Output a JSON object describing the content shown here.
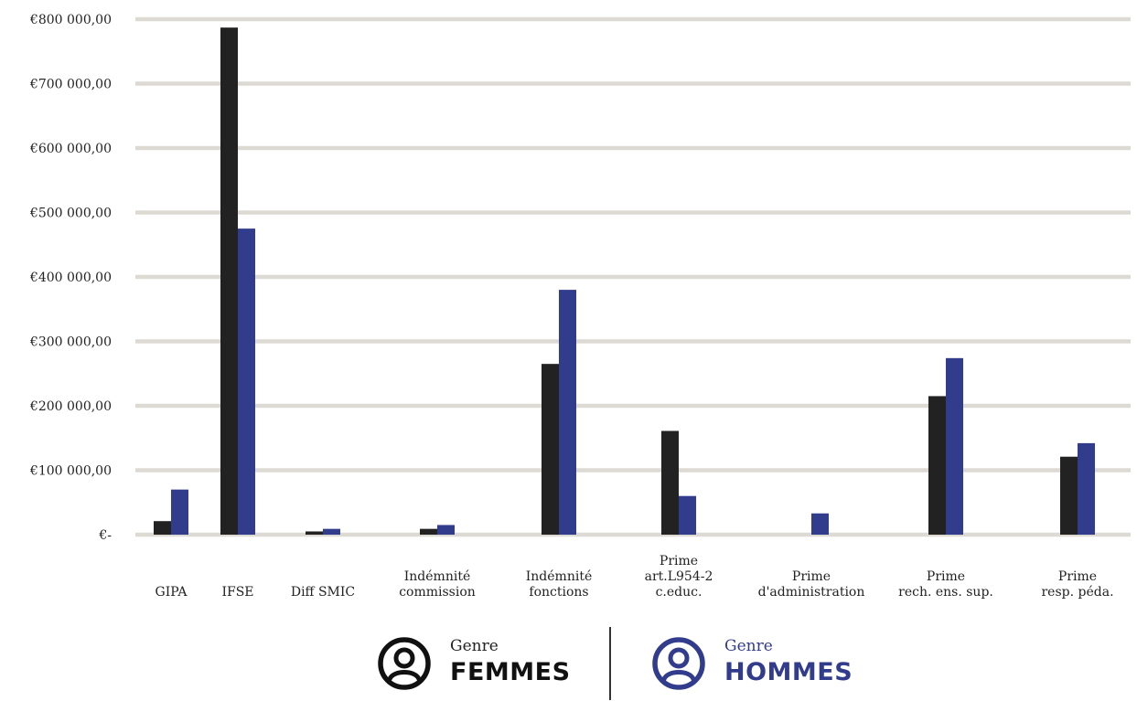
{
  "colors": {
    "femmes": "#222222",
    "hommes": "#323C8C",
    "grid": "#DDDAD4"
  },
  "chart_data": {
    "type": "bar",
    "categories": [
      [
        "GIPA"
      ],
      [
        "IFSE"
      ],
      [
        "Diff SMIC"
      ],
      [
        "Indémnité",
        "commission"
      ],
      [
        "Indémnité",
        "fonctions"
      ],
      [
        "Prime",
        "art.L954-2",
        "c.educ."
      ],
      [
        "Prime",
        "d'administration"
      ],
      [
        "Prime",
        "rech. ens. sup."
      ],
      [
        "Prime",
        "resp. péda."
      ]
    ],
    "series": [
      {
        "name": "FEMMES",
        "values": [
          21000,
          787000,
          5000,
          9000,
          265000,
          161000,
          0,
          215000,
          121000
        ]
      },
      {
        "name": "HOMMES",
        "values": [
          70000,
          475000,
          9000,
          15000,
          380000,
          60000,
          33000,
          274000,
          142000
        ]
      }
    ],
    "ylim": [
      0,
      800000
    ],
    "yticks": [
      0,
      100000,
      200000,
      300000,
      400000,
      500000,
      600000,
      700000,
      800000
    ],
    "ytick_labels": [
      "€-",
      "€100 000,00",
      "€200 000,00",
      "€300 000,00",
      "€400 000,00",
      "€500 000,00",
      "€600 000,00",
      "€700 000,00",
      "€800 000,00"
    ],
    "grid": true,
    "legend_position": "bottom-center"
  },
  "legend": {
    "femmes": {
      "caption": "Genre",
      "label": "FEMMES",
      "icon": "user-circle-icon"
    },
    "hommes": {
      "caption": "Genre",
      "label": "HOMMES",
      "icon": "user-circle-icon"
    }
  }
}
